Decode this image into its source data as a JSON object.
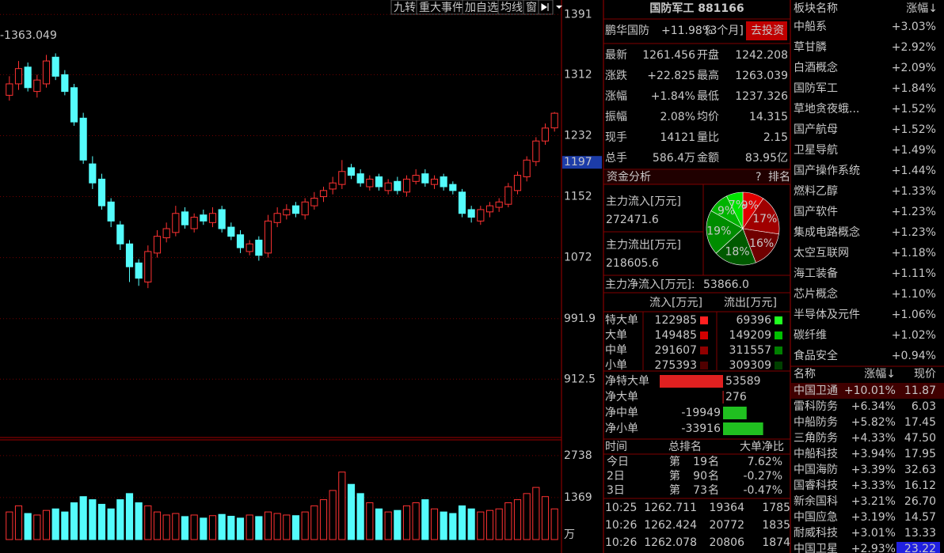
{
  "toolbar": [
    "九转",
    "重大事件",
    "加自选",
    "均线",
    "窗"
  ],
  "kline": {
    "type": "candlestick",
    "marker_label": "-1363.049",
    "price_label": 1197,
    "ylim": [
      836,
      1410
    ],
    "yticks": [
      1391,
      1312,
      1232,
      1152,
      1072,
      991.9,
      912.5
    ],
    "open": [
      1285,
      1300,
      1322,
      1290,
      1300,
      1335,
      1312,
      1295,
      1255,
      1195,
      1175,
      1145,
      1115,
      1090,
      1065,
      1040,
      1078,
      1098,
      1105,
      1132,
      1110,
      1128,
      1118,
      1135,
      1112,
      1102,
      1080,
      1095,
      1078,
      1118,
      1128,
      1140,
      1128,
      1140,
      1152,
      1162,
      1168,
      1190,
      1182,
      1165,
      1178,
      1160,
      1172,
      1158,
      1172,
      1182,
      1168,
      1178,
      1168,
      1158,
      1135,
      1120,
      1132,
      1138,
      1142,
      1160,
      1178,
      1198,
      1225,
      1242.208
    ],
    "high": [
      1310,
      1330,
      1328,
      1312,
      1338,
      1340,
      1318,
      1300,
      1262,
      1205,
      1182,
      1150,
      1120,
      1095,
      1070,
      1088,
      1108,
      1118,
      1140,
      1138,
      1130,
      1135,
      1138,
      1140,
      1118,
      1108,
      1095,
      1100,
      1128,
      1138,
      1142,
      1145,
      1150,
      1158,
      1165,
      1178,
      1200,
      1195,
      1188,
      1180,
      1182,
      1175,
      1178,
      1180,
      1188,
      1188,
      1180,
      1182,
      1172,
      1162,
      1140,
      1140,
      1145,
      1150,
      1170,
      1185,
      1205,
      1230,
      1248,
      1263.039
    ],
    "low": [
      1278,
      1292,
      1290,
      1282,
      1295,
      1305,
      1285,
      1245,
      1195,
      1162,
      1135,
      1112,
      1082,
      1040,
      1035,
      1032,
      1072,
      1092,
      1100,
      1110,
      1105,
      1115,
      1112,
      1105,
      1095,
      1078,
      1075,
      1068,
      1072,
      1112,
      1122,
      1125,
      1122,
      1135,
      1145,
      1155,
      1162,
      1175,
      1165,
      1160,
      1160,
      1155,
      1155,
      1152,
      1168,
      1165,
      1162,
      1160,
      1155,
      1125,
      1118,
      1115,
      1125,
      1132,
      1138,
      1155,
      1172,
      1192,
      1220,
      1237.326
    ],
    "close": [
      1300,
      1320,
      1295,
      1305,
      1330,
      1310,
      1290,
      1250,
      1200,
      1170,
      1140,
      1120,
      1090,
      1060,
      1045,
      1080,
      1100,
      1110,
      1130,
      1115,
      1125,
      1120,
      1130,
      1110,
      1100,
      1085,
      1090,
      1075,
      1120,
      1130,
      1135,
      1130,
      1145,
      1150,
      1160,
      1170,
      1185,
      1180,
      1170,
      1175,
      1165,
      1170,
      1160,
      1175,
      1180,
      1170,
      1175,
      1165,
      1160,
      1130,
      1125,
      1135,
      1140,
      1145,
      1165,
      1180,
      1200,
      1225,
      1242,
      1261.456
    ]
  },
  "volume": {
    "type": "bar",
    "unit": "万",
    "ylim": [
      0,
      3250
    ],
    "yticks": [
      2738,
      1369
    ],
    "values": [
      900,
      1100,
      850,
      800,
      950,
      1000,
      900,
      1200,
      1400,
      1300,
      1150,
      1000,
      1300,
      1500,
      1200,
      1100,
      900,
      800,
      850,
      750,
      800,
      700,
      780,
      820,
      760,
      700,
      800,
      750,
      900,
      850,
      800,
      780,
      900,
      1100,
      1300,
      1600,
      2200,
      1800,
      1500,
      1200,
      1000,
      900,
      950,
      1100,
      1200,
      1300,
      1000,
      900,
      850,
      1100,
      1000,
      900,
      950,
      1000,
      1200,
      1300,
      1500,
      1700,
      1400,
      1000
    ]
  },
  "fund": {
    "title": "国防军工 881166",
    "name": "鹏华国防",
    "change": "+11.98%",
    "period": "[3个月]",
    "button": "去投资"
  },
  "quote": [
    [
      "最新",
      "1261.456",
      "开盘",
      "1242.208"
    ],
    [
      "涨跌",
      "+22.825",
      "最高",
      "1263.039"
    ],
    [
      "涨幅",
      "+1.84%",
      "最低",
      "1237.326"
    ],
    [
      "振幅",
      "2.08%",
      "均价",
      "14.315"
    ],
    [
      "现手",
      "14121",
      "量比",
      "2.15"
    ],
    [
      "总手",
      "586.4万",
      "金额",
      "83.95亿"
    ]
  ],
  "capital": {
    "title": "资金分析",
    "help": "?",
    "rank": "排名",
    "inflow_label": "主力流入[万元]",
    "inflow": "272471.6",
    "outflow_label": "主力流出[万元]",
    "outflow": "218605.6",
    "net_label": "主力净流入[万元]:",
    "net": "53866.0",
    "pie": {
      "type": "pie",
      "values": [
        9,
        17,
        16,
        18,
        19,
        9,
        7
      ],
      "labels": [
        "9%",
        "17%",
        "16%",
        "18%",
        "19%",
        "9%",
        "7%"
      ],
      "colors": [
        "#e00000",
        "#a00000",
        "#700000",
        "#005a00",
        "#008c00",
        "#00b400",
        "#00e600"
      ]
    }
  },
  "flow": {
    "header": [
      "流入[万元]",
      "流出[万元]"
    ],
    "rows": [
      [
        "特大单",
        "122985",
        "69396"
      ],
      [
        "大单",
        "149485",
        "149209"
      ],
      [
        "中单",
        "291607",
        "311557"
      ],
      [
        "小单",
        "275393",
        "309309"
      ]
    ]
  },
  "net": {
    "labels": [
      "净特大单",
      "净大单",
      "净中单",
      "净小单"
    ],
    "values": [
      53589,
      276,
      -19949,
      -33916
    ]
  },
  "rank": {
    "header": [
      "时间",
      "总排名",
      "大单净比"
    ],
    "rows": [
      [
        "今日",
        "第",
        "19",
        "名",
        "7.62%"
      ],
      [
        "2日",
        "第",
        "90",
        "名",
        "-0.27%"
      ],
      [
        "3日",
        "第",
        "73",
        "名",
        "-0.47%"
      ]
    ]
  },
  "ticks": [
    [
      "10:25",
      "1262.711",
      "19364",
      "1785"
    ],
    [
      "10:26",
      "1262.424",
      "20772",
      "1835"
    ],
    [
      "10:26",
      "1262.078",
      "20806",
      "1874"
    ]
  ],
  "sectors": {
    "header": [
      "板块名称",
      "涨幅↓"
    ],
    "rows": [
      [
        "中船系",
        "+3.03%"
      ],
      [
        "草甘膦",
        "+2.92%"
      ],
      [
        "白酒概念",
        "+2.09%"
      ],
      [
        "国防军工",
        "+1.84%"
      ],
      [
        "草地贪夜蛾...",
        "+1.52%"
      ],
      [
        "国产航母",
        "+1.52%"
      ],
      [
        "卫星导航",
        "+1.49%"
      ],
      [
        "国产操作系统",
        "+1.44%"
      ],
      [
        "燃料乙醇",
        "+1.33%"
      ],
      [
        "国产软件",
        "+1.23%"
      ],
      [
        "集成电路概念",
        "+1.23%"
      ],
      [
        "太空互联网",
        "+1.18%"
      ],
      [
        "海工装备",
        "+1.11%"
      ],
      [
        "芯片概念",
        "+1.10%"
      ],
      [
        "半导体及元件",
        "+1.06%"
      ],
      [
        "碳纤维",
        "+1.02%"
      ],
      [
        "食品安全",
        "+0.94%"
      ]
    ]
  },
  "stocks": {
    "header": [
      "名称",
      "涨幅↓",
      "现价"
    ],
    "rows": [
      [
        "中国卫通",
        "+10.01%",
        "11.87"
      ],
      [
        "雷科防务",
        "+6.34%",
        "6.03"
      ],
      [
        "中船防务",
        "+5.82%",
        "17.45"
      ],
      [
        "三角防务",
        "+4.33%",
        "47.50"
      ],
      [
        "中船科技",
        "+3.94%",
        "17.95"
      ],
      [
        "中国海防",
        "+3.39%",
        "32.63"
      ],
      [
        "国睿科技",
        "+3.33%",
        "16.12"
      ],
      [
        "新余国科",
        "+3.21%",
        "26.70"
      ],
      [
        "中国应急",
        "+3.19%",
        "14.57"
      ],
      [
        "耐威科技",
        "+3.01%",
        "13.33"
      ],
      [
        "中国卫星",
        "+2.93%",
        "23.22"
      ]
    ]
  }
}
